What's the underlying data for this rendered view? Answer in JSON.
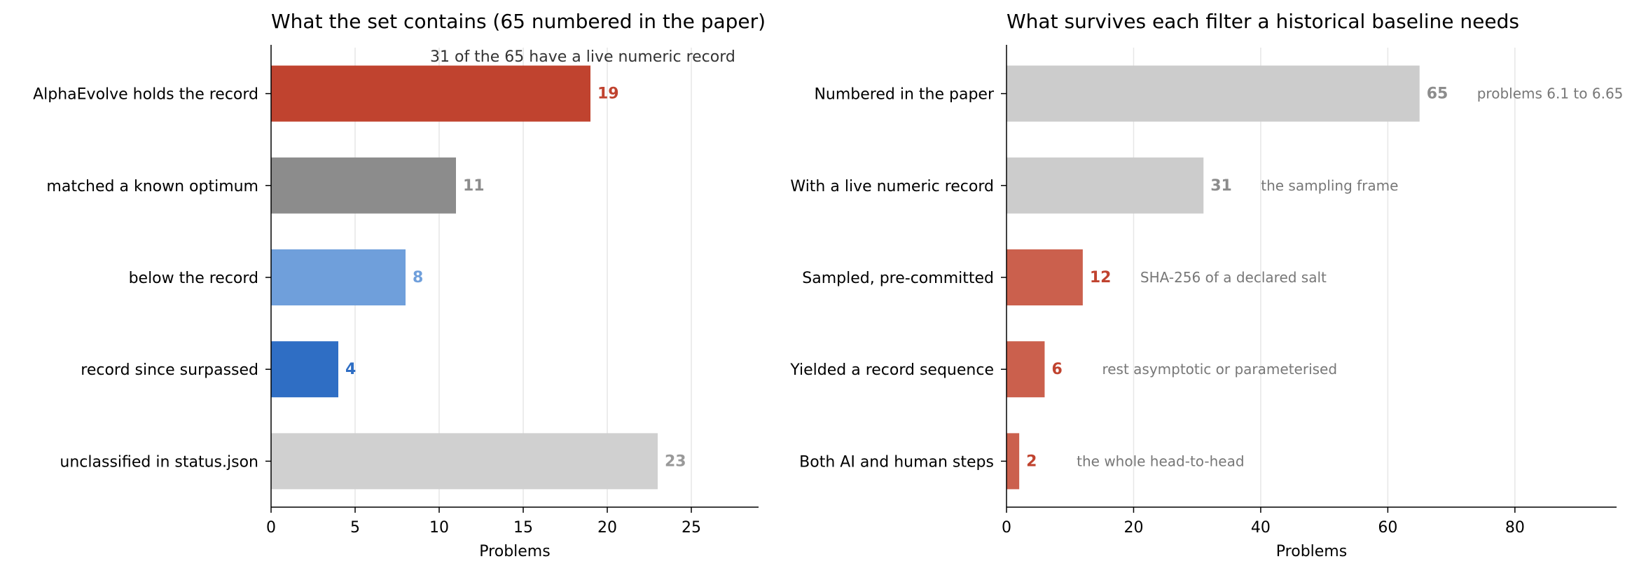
{
  "chart_data": [
    {
      "type": "bar",
      "orientation": "horizontal",
      "title": "What the set contains (65 numbered in the paper)",
      "annotation": "31 of the 65 have a live numeric record",
      "xlabel": "Problems",
      "xlim": [
        0,
        29
      ],
      "xticks": [
        0,
        5,
        10,
        15,
        20,
        25
      ],
      "grid": "vertical",
      "categories": [
        "AlphaEvolve holds the record",
        "matched a known optimum",
        "below the record",
        "record since surpassed",
        "unclassified in status.json"
      ],
      "values": [
        19,
        11,
        8,
        4,
        23
      ],
      "colors": [
        "#c0432f",
        "#8c8c8c",
        "#6f9fdb",
        "#2f6ec4",
        "#d0d0d0"
      ],
      "label_colors": [
        "#c0432f",
        "#8c8c8c",
        "#6f9fdb",
        "#2f6ec4",
        "#999999"
      ]
    },
    {
      "type": "bar",
      "orientation": "horizontal",
      "title": "What survives each filter a historical baseline needs",
      "xlabel": "Problems",
      "xlim": [
        0,
        96
      ],
      "xticks": [
        0,
        20,
        40,
        60,
        80
      ],
      "grid": "vertical",
      "categories": [
        "Numbered in the paper",
        "With a live numeric record",
        "Sampled, pre-committed",
        "Yielded a record sequence",
        "Both AI and human steps"
      ],
      "values": [
        65,
        31,
        12,
        6,
        2
      ],
      "notes": [
        "problems 6.1 to 6.65",
        "the sampling frame",
        "SHA-256 of a declared salt",
        "rest asymptotic or parameterised",
        "the whole head-to-head"
      ],
      "colors": [
        "#cccccc",
        "#cccccc",
        "#cb604d",
        "#cb604d",
        "#cb604d"
      ],
      "label_colors": [
        "#8c8c8c",
        "#8c8c8c",
        "#c0432f",
        "#c0432f",
        "#c0432f"
      ]
    }
  ]
}
